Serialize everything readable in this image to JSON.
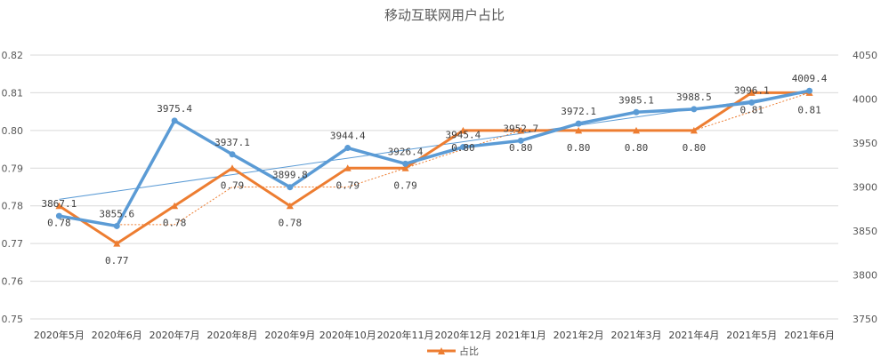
{
  "chart_data": {
    "type": "line",
    "title": "移动互联网用户占比",
    "categories": [
      "2020年5月",
      "2020年6月",
      "2020年7月",
      "2020年8月",
      "2020年9月",
      "2020年10月",
      "2020年11月",
      "2020年12月",
      "2021年1月",
      "2021年2月",
      "2021年3月",
      "2021年4月",
      "2021年5月",
      "2021年6月"
    ],
    "series": [
      {
        "name": "占比",
        "axis": "left",
        "color": "#ED7D31",
        "values": [
          0.78,
          0.77,
          0.78,
          0.79,
          0.78,
          0.79,
          0.79,
          0.8,
          0.8,
          0.8,
          0.8,
          0.8,
          0.81,
          0.81
        ],
        "labels": [
          "0.78",
          "0.77",
          "0.78",
          "0.79",
          "0.78",
          "0.79",
          "0.79",
          "0.80",
          "0.80",
          "0.80",
          "0.80",
          "0.80",
          "0.81",
          "0.81"
        ]
      },
      {
        "axis": "right",
        "color": "#5B9BD5",
        "values": [
          3867.1,
          3855.6,
          3975.4,
          3937.1,
          3899.8,
          3944.4,
          3926.4,
          3945.4,
          3952.7,
          3972.1,
          3985.1,
          3988.5,
          3996.1,
          4009.4
        ],
        "labels": [
          "3867.1",
          "3855.6",
          "3975.4",
          "3937.1",
          "3899.8",
          "3944.4",
          "3926.4",
          "3945.4",
          "3952.7",
          "3972.1",
          "3985.1",
          "3988.5",
          "3996.1",
          "4009.4"
        ]
      }
    ],
    "left_axis": {
      "min": 0.75,
      "max": 0.82,
      "ticks": [
        "0.75",
        "0.76",
        "0.77",
        "0.78",
        "0.79",
        "0.80",
        "0.81",
        "0.82"
      ]
    },
    "right_axis": {
      "min": 3750,
      "max": 4050,
      "ticks": [
        "3750",
        "3800",
        "3850",
        "3900",
        "3950",
        "4000",
        "4050"
      ]
    },
    "trendlines": [
      {
        "series": "blue",
        "style": "solid-thin"
      },
      {
        "series": "orange",
        "style": "dotted",
        "kind": "moving-average"
      }
    ],
    "grid": true,
    "legend": {
      "position": "bottom",
      "entries": [
        "占比"
      ]
    }
  }
}
